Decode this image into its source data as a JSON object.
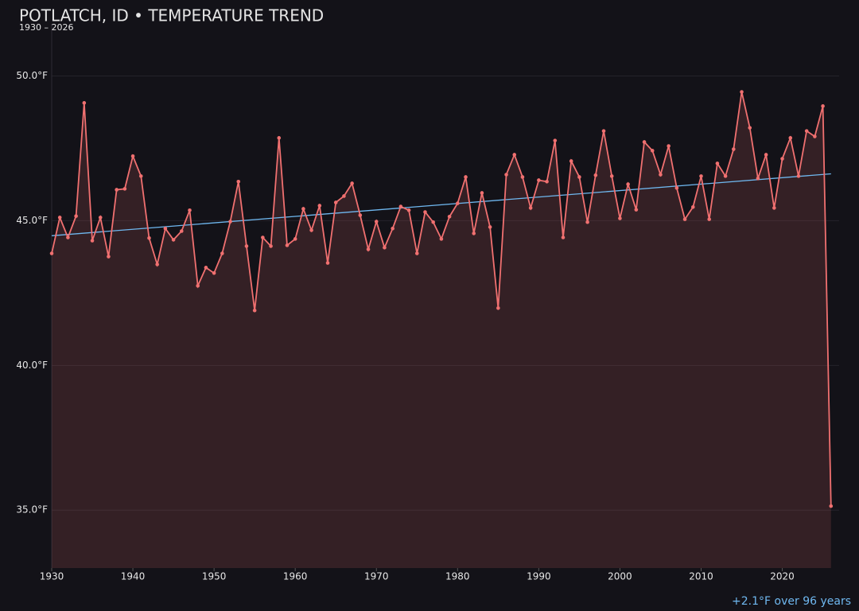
{
  "chart_data": {
    "type": "line",
    "title": "POTLATCH, ID • TEMPERATURE TREND",
    "subtitle": "1930 – 2026",
    "annotation": "+2.1°F over 96 years",
    "x": [
      1930,
      1931,
      1932,
      1933,
      1934,
      1935,
      1936,
      1937,
      1938,
      1939,
      1940,
      1941,
      1942,
      1943,
      1944,
      1945,
      1946,
      1947,
      1948,
      1949,
      1950,
      1951,
      1952,
      1953,
      1954,
      1955,
      1956,
      1957,
      1958,
      1959,
      1960,
      1961,
      1962,
      1963,
      1964,
      1965,
      1966,
      1967,
      1968,
      1969,
      1970,
      1971,
      1972,
      1973,
      1974,
      1975,
      1976,
      1977,
      1978,
      1979,
      1980,
      1981,
      1982,
      1983,
      1984,
      1985,
      1986,
      1987,
      1988,
      1989,
      1990,
      1991,
      1992,
      1993,
      1994,
      1995,
      1996,
      1997,
      1998,
      1999,
      2000,
      2001,
      2002,
      2003,
      2004,
      2005,
      2006,
      2007,
      2008,
      2009,
      2010,
      2011,
      2012,
      2013,
      2014,
      2015,
      2016,
      2017,
      2018,
      2019,
      2020,
      2021,
      2022,
      2023,
      2024,
      2025,
      2026
    ],
    "values": [
      43.87,
      45.11,
      44.42,
      45.16,
      49.07,
      44.31,
      45.11,
      43.76,
      46.07,
      46.1,
      47.23,
      46.54,
      44.4,
      43.49,
      44.73,
      44.34,
      44.64,
      45.36,
      42.75,
      43.38,
      43.19,
      43.87,
      44.97,
      46.35,
      44.12,
      41.9,
      44.42,
      44.12,
      47.86,
      44.15,
      44.37,
      45.41,
      44.67,
      45.52,
      43.54,
      45.63,
      45.85,
      46.29,
      45.19,
      44.01,
      44.97,
      44.07,
      44.73,
      45.49,
      45.36,
      43.87,
      45.3,
      44.95,
      44.37,
      45.14,
      45.6,
      46.51,
      44.56,
      45.96,
      44.78,
      41.98,
      46.59,
      47.28,
      46.51,
      45.44,
      46.4,
      46.35,
      47.77,
      44.42,
      47.06,
      46.51,
      44.95,
      46.57,
      48.1,
      46.54,
      45.08,
      46.26,
      45.38,
      47.72,
      47.42,
      46.59,
      47.58,
      46.13,
      45.05,
      45.47,
      46.54,
      45.05,
      46.98,
      46.54,
      47.47,
      49.45,
      48.21,
      46.46,
      47.28,
      45.44,
      47.14,
      47.86,
      46.54,
      48.1,
      47.91,
      48.96,
      35.14
    ],
    "color": "#f07070",
    "trend": {
      "x": [
        1930,
        2026
      ],
      "values": [
        44.48,
        46.62
      ],
      "color": "#6fb8f0"
    },
    "xlim": [
      1930,
      2027
    ],
    "ylim": [
      33,
      51.8
    ],
    "xticks": [
      1930,
      1940,
      1950,
      1960,
      1970,
      1980,
      1990,
      2000,
      2010,
      2020
    ],
    "yticks": [
      {
        "value": 35,
        "label": "35.0°F"
      },
      {
        "value": 40,
        "label": "40.0°F"
      },
      {
        "value": 45,
        "label": "45.0°F"
      },
      {
        "value": 50,
        "label": "50.0°F"
      }
    ],
    "grid": true
  }
}
